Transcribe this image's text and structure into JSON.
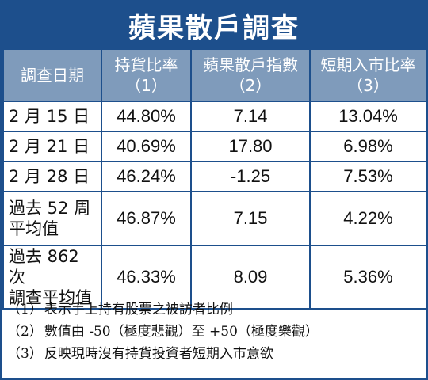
{
  "title": "蘋果散戶調查",
  "headers": [
    {
      "line1": "調查日期",
      "line2": ""
    },
    {
      "line1": "持貨比率",
      "line2": "（1）"
    },
    {
      "line1": "蘋果散戶指數",
      "line2": "（2）"
    },
    {
      "line1": "短期入市比率",
      "line2": "（3）"
    }
  ],
  "rows": [
    {
      "date": [
        "2 月 15 日"
      ],
      "ratio": "44.80%",
      "index": "7.14",
      "short": "13.04%"
    },
    {
      "date": [
        "2 月 21 日"
      ],
      "ratio": "40.69%",
      "index": "17.80",
      "short": "6.98%"
    },
    {
      "date": [
        "2 月 28 日"
      ],
      "ratio": "46.24%",
      "index": "-1.25",
      "short": "7.53%"
    },
    {
      "date": [
        "過去 52 周",
        "平均值"
      ],
      "ratio": "46.87%",
      "index": "7.15",
      "short": "4.22%"
    },
    {
      "date": [
        "過去 862 次",
        "調查平均值"
      ],
      "ratio": "46.33%",
      "index": "8.09",
      "short": "5.36%"
    }
  ],
  "notes": [
    {
      "num": "（1）",
      "text": "表示手上持有股票之被訪者比例"
    },
    {
      "num": "（2）",
      "text": "數值由 -50（極度悲觀）至 +50（極度樂觀）"
    },
    {
      "num": "（3）",
      "text": "反映現時沒有持貨投資者短期入市意欲"
    }
  ]
}
